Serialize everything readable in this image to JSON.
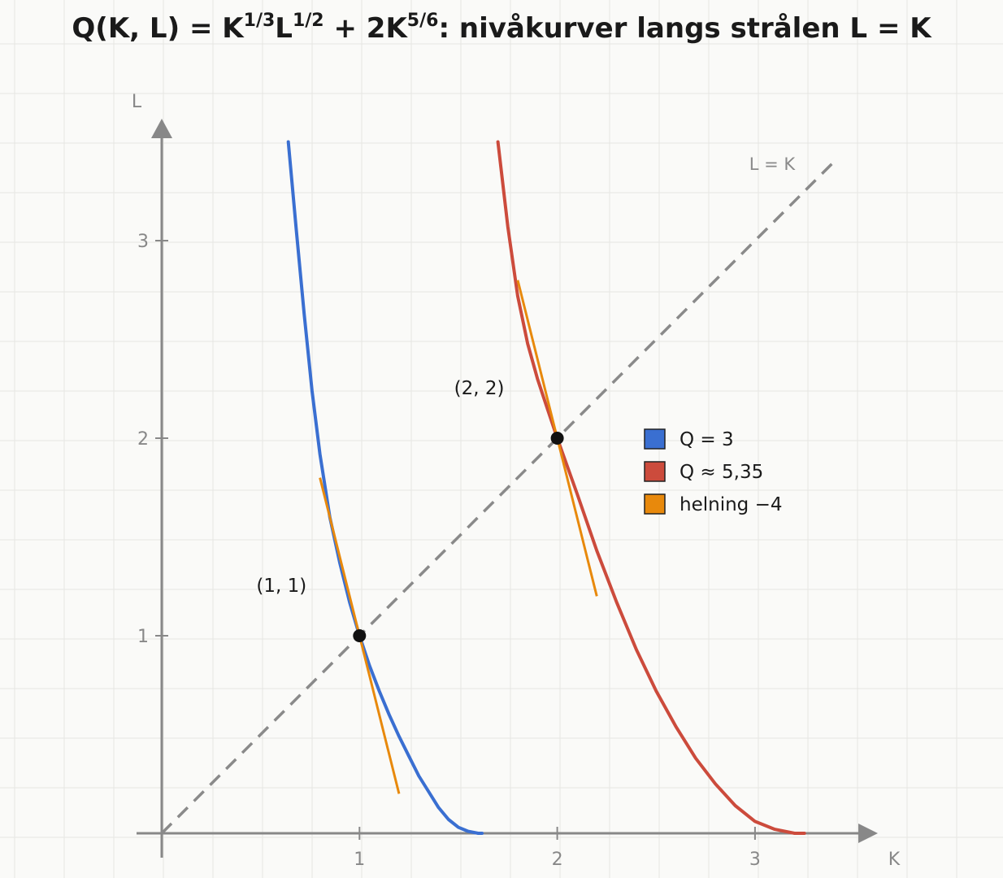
{
  "title": {
    "prefix": "Q(K, L) = K",
    "exp1": "1/3",
    "mid1": "L",
    "exp2": "1/2",
    "mid2": " + 2K",
    "exp3": "5/6",
    "suffix": ": nivåkurver langs strålen L = K"
  },
  "chart_data": {
    "type": "line",
    "title": "Q(K, L) = K^(1/3) L^(1/2) + 2K^(5/6): nivåkurver langs strålen L = K",
    "xlabel": "K",
    "ylabel": "L",
    "xlim": [
      0,
      3.6
    ],
    "ylim": [
      0,
      3.6
    ],
    "x_ticks": [
      {
        "value": 1,
        "label": "1"
      },
      {
        "value": 2,
        "label": "2"
      },
      {
        "value": 3,
        "label": "3"
      }
    ],
    "y_ticks": [
      {
        "value": 1,
        "label": "1"
      },
      {
        "value": 2,
        "label": "2"
      },
      {
        "value": 3,
        "label": "3"
      }
    ],
    "grid": true,
    "legend_position": "right",
    "series": [
      {
        "name": "Q = 3",
        "color": "#3a6fd1",
        "x": [
          0.64,
          0.68,
          0.72,
          0.76,
          0.8,
          0.85,
          0.9,
          0.95,
          1.0,
          1.05,
          1.1,
          1.15,
          1.2,
          1.25,
          1.3,
          1.35,
          1.4,
          1.45,
          1.5,
          1.55,
          1.6,
          1.62
        ],
        "y": [
          3.5,
          3.06,
          2.63,
          2.24,
          1.92,
          1.6,
          1.37,
          1.17,
          1.0,
          0.85,
          0.72,
          0.6,
          0.49,
          0.39,
          0.29,
          0.21,
          0.13,
          0.07,
          0.03,
          0.01,
          0.0,
          0.0
        ]
      },
      {
        "name": "Q ≈ 5,35",
        "color": "#cc4b3c",
        "x": [
          1.7,
          1.75,
          1.8,
          1.85,
          1.9,
          1.95,
          2.0,
          2.1,
          2.2,
          2.3,
          2.4,
          2.5,
          2.6,
          2.7,
          2.8,
          2.9,
          3.0,
          3.1,
          3.2,
          3.25
        ],
        "y": [
          3.5,
          3.07,
          2.72,
          2.48,
          2.3,
          2.15,
          2.0,
          1.72,
          1.43,
          1.17,
          0.93,
          0.72,
          0.54,
          0.38,
          0.25,
          0.14,
          0.06,
          0.02,
          0.0,
          0.0
        ]
      },
      {
        "name": "helning −4",
        "color": "#e8890c",
        "segments": [
          {
            "x": [
              0.8,
              1.2
            ],
            "y": [
              1.8,
              0.2
            ]
          },
          {
            "x": [
              1.8,
              2.2
            ],
            "y": [
              2.8,
              1.2
            ]
          }
        ]
      }
    ],
    "ray": {
      "label": "L = K",
      "x": [
        0,
        3.4
      ],
      "y": [
        0,
        3.4
      ],
      "color": "#8a8a8a"
    },
    "points": [
      {
        "x": 1,
        "y": 1,
        "label": "(1, 1)"
      },
      {
        "x": 2,
        "y": 2,
        "label": "(2, 2)"
      }
    ]
  }
}
